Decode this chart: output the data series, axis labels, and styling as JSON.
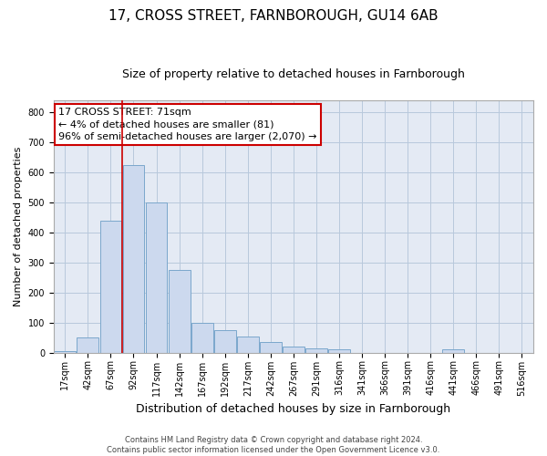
{
  "title": "17, CROSS STREET, FARNBOROUGH, GU14 6AB",
  "subtitle": "Size of property relative to detached houses in Farnborough",
  "xlabel": "Distribution of detached houses by size in Farnborough",
  "ylabel": "Number of detached properties",
  "footer_line1": "Contains HM Land Registry data © Crown copyright and database right 2024.",
  "footer_line2": "Contains public sector information licensed under the Open Government Licence v3.0.",
  "bar_labels": [
    "17sqm",
    "42sqm",
    "67sqm",
    "92sqm",
    "117sqm",
    "142sqm",
    "167sqm",
    "192sqm",
    "217sqm",
    "242sqm",
    "267sqm",
    "291sqm",
    "316sqm",
    "341sqm",
    "366sqm",
    "391sqm",
    "416sqm",
    "441sqm",
    "466sqm",
    "491sqm",
    "516sqm"
  ],
  "bar_values": [
    5,
    50,
    440,
    625,
    500,
    275,
    100,
    75,
    55,
    35,
    20,
    15,
    12,
    0,
    0,
    0,
    0,
    10,
    0,
    0,
    0
  ],
  "bar_color": "#ccd9ee",
  "bar_edge_color": "#7ba7cc",
  "property_line_x": 2.5,
  "annotation_text": "17 CROSS STREET: 71sqm\n← 4% of detached houses are smaller (81)\n96% of semi-detached houses are larger (2,070) →",
  "annotation_box_facecolor": "#ffffff",
  "annotation_box_edgecolor": "#cc0000",
  "ylim": [
    0,
    840
  ],
  "yticks": [
    0,
    100,
    200,
    300,
    400,
    500,
    600,
    700,
    800
  ],
  "grid_color": "#b8c8dc",
  "bg_color": "#e4eaf4",
  "title_fontsize": 11,
  "subtitle_fontsize": 9,
  "ylabel_fontsize": 8,
  "xlabel_fontsize": 9,
  "tick_fontsize": 7,
  "annotation_fontsize": 8,
  "footer_fontsize": 6
}
